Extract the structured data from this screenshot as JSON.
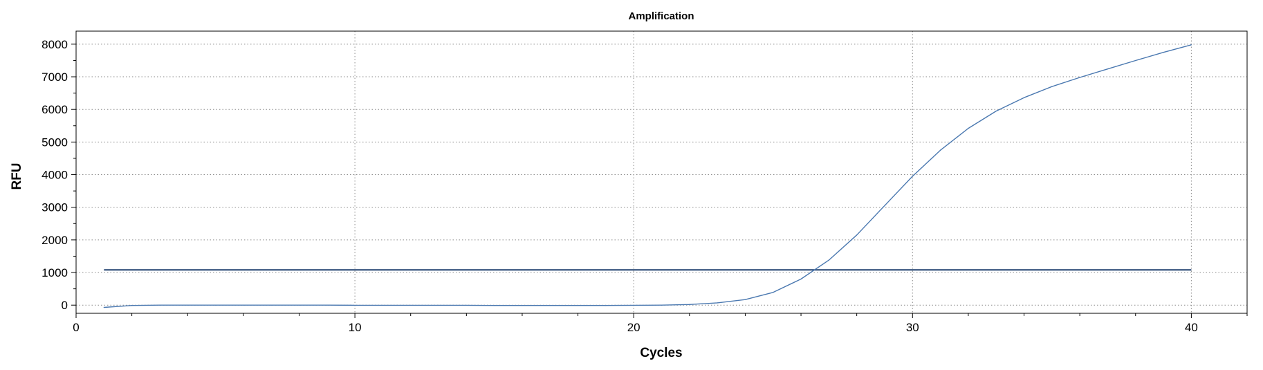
{
  "chart_data": {
    "type": "line",
    "title": "Amplification",
    "xlabel": "Cycles",
    "ylabel": "RFU",
    "xlim": [
      0,
      42
    ],
    "ylim": [
      -250,
      8400
    ],
    "xticks": [
      0,
      10,
      20,
      30,
      40
    ],
    "yticks": [
      0,
      1000,
      2000,
      3000,
      4000,
      5000,
      6000,
      7000,
      8000
    ],
    "grid": true,
    "series": [
      {
        "color": "#4a78b0",
        "x": [
          1,
          2,
          3,
          4,
          5,
          6,
          7,
          8,
          9,
          10,
          11,
          12,
          13,
          14,
          15,
          16,
          17,
          18,
          19,
          20,
          21,
          22,
          23,
          24,
          25,
          26,
          27,
          28,
          29,
          30,
          31,
          32,
          33,
          34,
          35,
          36,
          37,
          38,
          39,
          40
        ],
        "y": [
          -70,
          -10,
          0,
          0,
          0,
          0,
          0,
          0,
          0,
          -5,
          -5,
          -5,
          -5,
          -5,
          -10,
          -10,
          -10,
          -10,
          -10,
          -5,
          0,
          20,
          70,
          170,
          390,
          800,
          1380,
          2150,
          3050,
          3950,
          4750,
          5420,
          5950,
          6360,
          6700,
          6980,
          7240,
          7500,
          7750,
          7980
        ]
      }
    ],
    "threshold": {
      "value": 1080,
      "x_start": 1,
      "x_end": 40,
      "color": "#1f3f6e"
    }
  }
}
